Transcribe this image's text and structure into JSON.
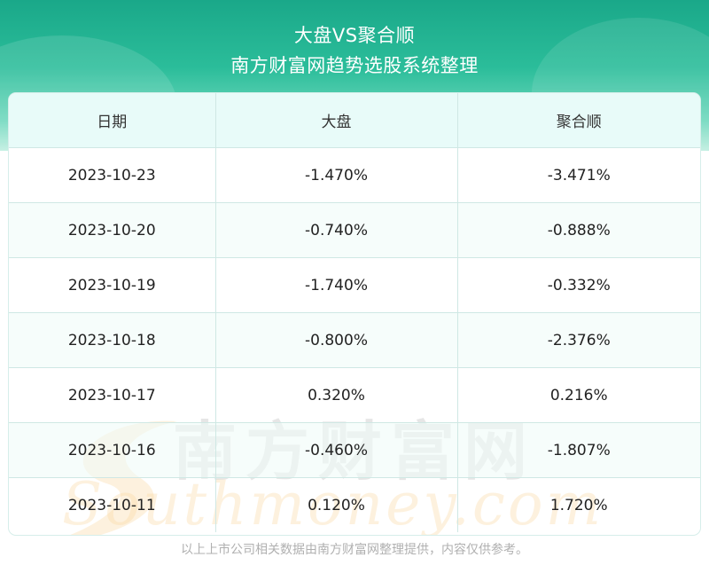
{
  "header": {
    "title": "大盘VS聚合顺",
    "subtitle": "南方财富网趋势选股系统整理"
  },
  "watermark": {
    "cn": "南方财富网",
    "en": "Southmoney.com"
  },
  "chart_data": {
    "type": "table",
    "columns": [
      "日期",
      "大盘",
      "聚合顺"
    ],
    "rows": [
      [
        "2023-10-23",
        "-1.470%",
        "-3.471%"
      ],
      [
        "2023-10-20",
        "-0.740%",
        "-0.888%"
      ],
      [
        "2023-10-19",
        "-1.740%",
        "-0.332%"
      ],
      [
        "2023-10-18",
        "-0.800%",
        "-2.376%"
      ],
      [
        "2023-10-17",
        "0.320%",
        "0.216%"
      ],
      [
        "2023-10-16",
        "-0.460%",
        "-1.807%"
      ],
      [
        "2023-10-11",
        "0.120%",
        "1.720%"
      ]
    ]
  },
  "footer": {
    "note": "以上上市公司相关数据由南方财富网整理提供，内容仅供参考。"
  }
}
